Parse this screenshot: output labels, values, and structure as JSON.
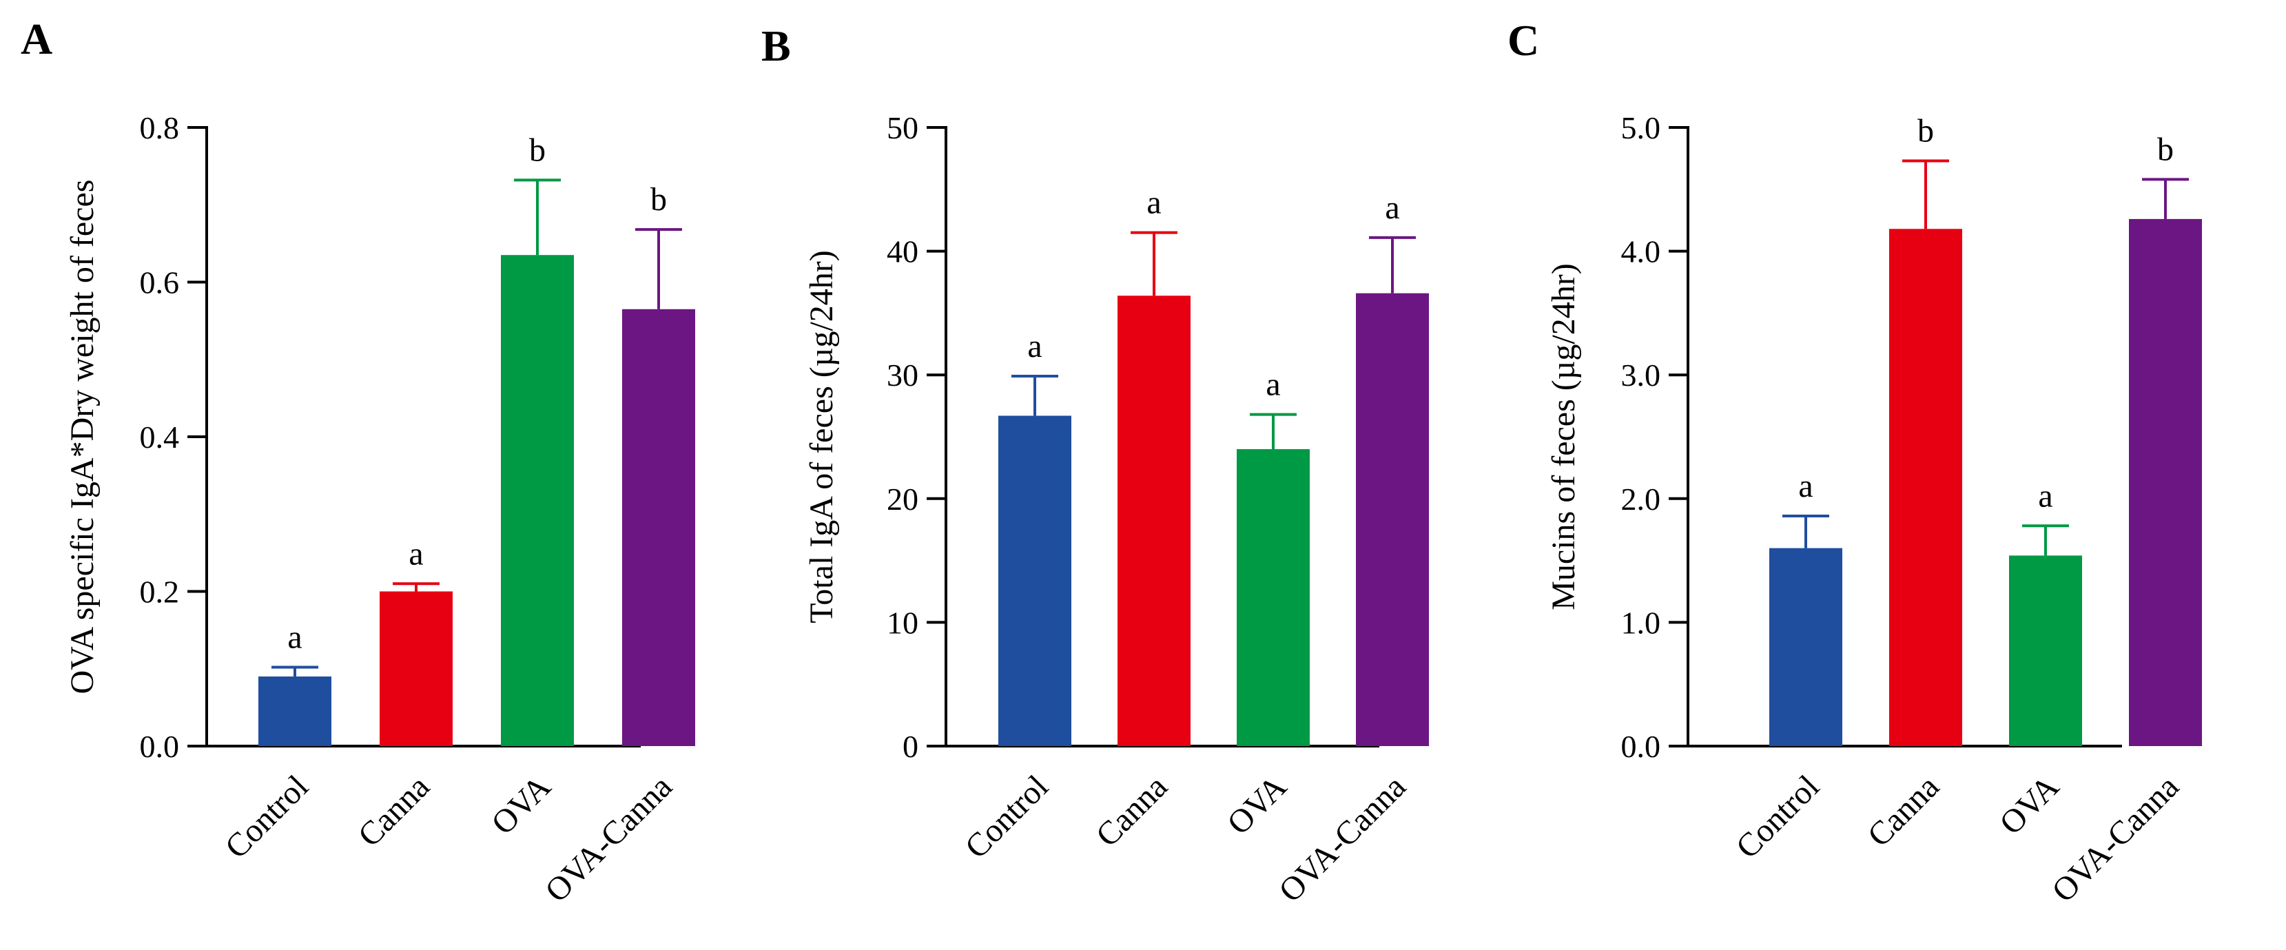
{
  "chart_data": [
    {
      "type": "bar",
      "panel": "A",
      "title": "",
      "xlabel": "",
      "ylabel": "OVA specific IgA*Dry weight of feces",
      "ylim": [
        0,
        0.8
      ],
      "yticks": [
        "0.0",
        "0.2",
        "0.4",
        "0.6",
        "0.8"
      ],
      "categories": [
        "Control",
        "Canna",
        "OVA",
        "OVA-Canna"
      ],
      "values": [
        0.09,
        0.2,
        0.635,
        0.565
      ],
      "errors": [
        0.012,
        0.01,
        0.097,
        0.103
      ],
      "significance": [
        "a",
        "a",
        "b",
        "b"
      ],
      "colors": [
        "#1f4e9f",
        "#e60012",
        "#009944",
        "#6c1683"
      ]
    },
    {
      "type": "bar",
      "panel": "B",
      "title": "",
      "xlabel": "",
      "ylabel": "Total IgA of feces (µg/24hr)",
      "ylim": [
        0,
        50
      ],
      "yticks": [
        "0",
        "10",
        "20",
        "30",
        "40",
        "50"
      ],
      "categories": [
        "Control",
        "Canna",
        "OVA",
        "OVA-Canna"
      ],
      "values": [
        26.7,
        36.4,
        24.0,
        36.6
      ],
      "errors": [
        3.2,
        5.1,
        2.8,
        4.5
      ],
      "significance": [
        "a",
        "a",
        "a",
        "a"
      ],
      "colors": [
        "#1f4e9f",
        "#e60012",
        "#009944",
        "#6c1683"
      ]
    },
    {
      "type": "bar",
      "panel": "C",
      "title": "",
      "xlabel": "",
      "ylabel": "Mucins of feces (µg/24hr)",
      "ylim": [
        0,
        5
      ],
      "yticks": [
        "0.0",
        "1.0",
        "2.0",
        "3.0",
        "4.0",
        "5.0"
      ],
      "categories": [
        "Control",
        "Canna",
        "OVA",
        "OVA-Canna"
      ],
      "values": [
        1.6,
        4.18,
        1.54,
        4.26
      ],
      "errors": [
        0.26,
        0.55,
        0.24,
        0.32
      ],
      "significance": [
        "a",
        "b",
        "a",
        "b"
      ],
      "colors": [
        "#1f4e9f",
        "#e60012",
        "#009944",
        "#6c1683"
      ]
    }
  ]
}
